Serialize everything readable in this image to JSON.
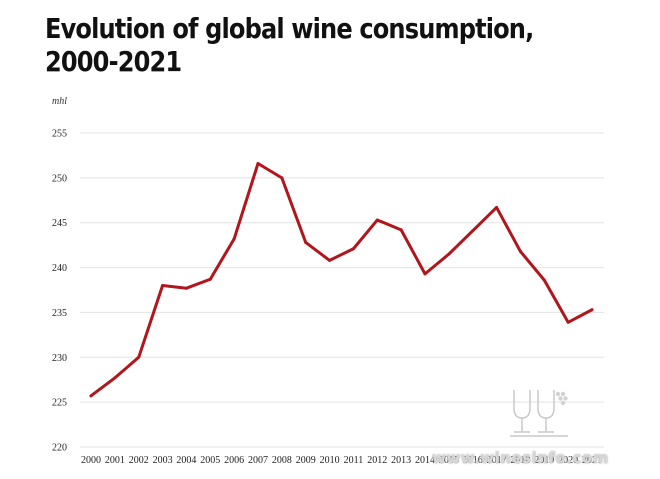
{
  "chart_data": {
    "type": "line",
    "title_lines": [
      "Evolution of global wine consumption,",
      "2000-2021"
    ],
    "unit_label": "mhl",
    "x": [
      "2000",
      "2001",
      "2002",
      "2003",
      "2004",
      "2005",
      "2006",
      "2007",
      "2008",
      "2009",
      "2010",
      "2011",
      "2012",
      "2013",
      "2014",
      "2015",
      "2016",
      "2017",
      "2018",
      "2019",
      "2020",
      "2021"
    ],
    "series": [
      {
        "values": [
          225.7,
          227.7,
          230.0,
          238.0,
          237.7,
          238.7,
          243.2,
          251.6,
          250.0,
          242.8,
          240.8,
          242.1,
          245.3,
          244.2,
          239.3,
          241.5,
          244.1,
          246.7,
          241.8,
          238.6,
          233.9,
          235.3
        ]
      }
    ],
    "y_ticks": [
      220,
      225,
      230,
      235,
      240,
      245,
      250,
      255
    ],
    "ylim": [
      220,
      255
    ],
    "grid": true,
    "line_color": "#b0161c"
  },
  "watermark_text": "www.winesinfo.com"
}
